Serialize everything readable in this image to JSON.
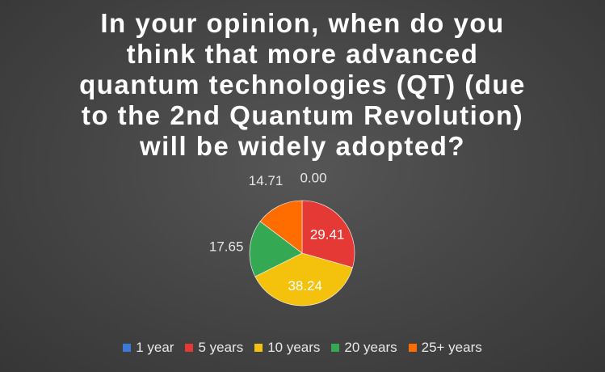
{
  "chart_data": {
    "type": "pie",
    "title_lines": [
      "In your opinion, when do you",
      "think that more advanced",
      "quantum technologies (QT) (due",
      "to the 2nd Quantum Revolution)",
      "will be widely adopted?"
    ],
    "categories": [
      "1 year",
      "5 years",
      "10 years",
      "20 years",
      "25+ years"
    ],
    "values": [
      0.0,
      29.41,
      38.24,
      17.65,
      14.71
    ],
    "data_labels": [
      "0.00",
      "29.41",
      "38.24",
      "17.65",
      "14.71"
    ],
    "colors": [
      "#3c78d8",
      "#e53935",
      "#f4c20d",
      "#34a853",
      "#ff6d01"
    ],
    "legend_position": "bottom"
  }
}
